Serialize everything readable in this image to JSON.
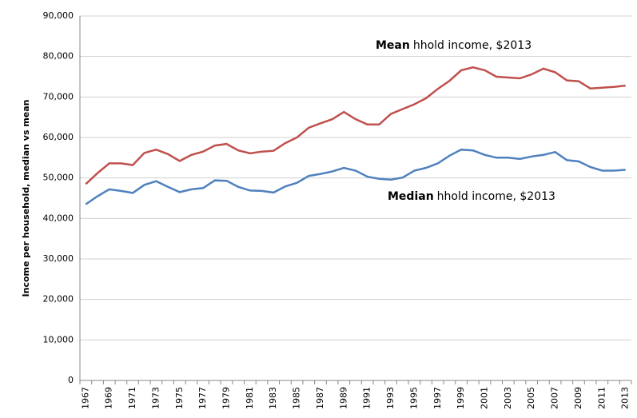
{
  "chart_data": {
    "type": "line",
    "y_label": "Income per household, median vs mean",
    "categories": [
      "1967",
      null,
      "1969",
      null,
      "1971",
      null,
      "1973",
      null,
      "1975",
      null,
      "1977",
      null,
      "1979",
      null,
      "1981",
      null,
      "1983",
      null,
      "1985",
      null,
      "1987",
      null,
      "1989",
      null,
      "1991",
      null,
      "1993",
      null,
      "1995",
      null,
      "1997",
      null,
      "1999",
      null,
      "2001",
      null,
      "2003",
      null,
      "2005",
      null,
      "2007",
      null,
      "2009",
      null,
      "2011",
      null,
      "2013"
    ],
    "series": [
      {
        "bold": "Mean",
        "name": "hhold income, $2013",
        "color": "#c0504d",
        "values": [
          48500,
          51200,
          53600,
          53600,
          53200,
          56200,
          57000,
          55900,
          54200,
          55700,
          56500,
          58000,
          58400,
          56800,
          56100,
          56500,
          56700,
          58600,
          60000,
          62400,
          63500,
          64500,
          66300,
          64500,
          63200,
          63200,
          65800,
          67000,
          68200,
          69700,
          72000,
          74000,
          76600,
          77300,
          76600,
          75000,
          74800,
          74600,
          75600,
          77000,
          76100,
          74100,
          73900,
          72100,
          72300,
          72500,
          72800
        ]
      },
      {
        "bold": "Median",
        "name": "hhold income, $2013",
        "color": "#4f81bd",
        "values": [
          43500,
          45500,
          47200,
          46800,
          46300,
          48300,
          49200,
          47800,
          46500,
          47200,
          47500,
          49400,
          49300,
          47800,
          46900,
          46800,
          46400,
          47900,
          48800,
          50500,
          51000,
          51600,
          52500,
          51800,
          50300,
          49800,
          49600,
          50100,
          51800,
          52500,
          53600,
          55500,
          57000,
          56800,
          55700,
          55000,
          55000,
          54700,
          55300,
          55700,
          56400,
          54400,
          54100,
          52700,
          51800,
          51800,
          52000
        ]
      }
    ],
    "ylim": [
      0,
      90000
    ],
    "yticks": [
      0,
      {
        "value": 10000,
        "label": "10,000"
      },
      {
        "value": 20000,
        "label": "20,000"
      },
      {
        "value": 30000,
        "label": "30,000"
      },
      {
        "value": 40000,
        "label": "40,000"
      },
      {
        "value": 50000,
        "label": "50,000"
      },
      {
        "value": 60000,
        "label": "60,000"
      },
      {
        "value": 70000,
        "label": "70,000"
      },
      {
        "value": 80000,
        "label": "80,000"
      },
      {
        "value": 90000,
        "label": "90,000"
      }
    ],
    "grid": true
  }
}
